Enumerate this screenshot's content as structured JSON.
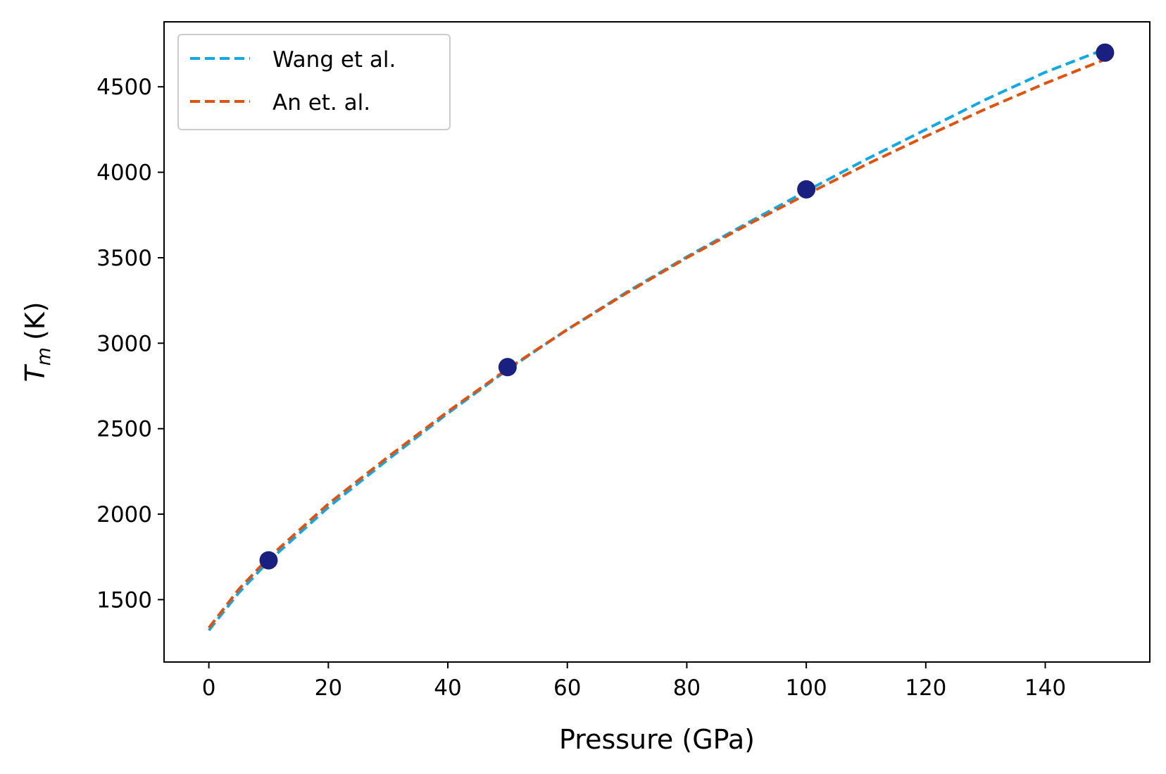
{
  "chart_data": {
    "type": "line",
    "xlabel": "Pressure (GPa)",
    "ylabel": {
      "symbol": "T",
      "subscript": "m",
      "unit": "(K)"
    },
    "xlim": [
      -7.5,
      157.5
    ],
    "ylim": [
      1135,
      4880
    ],
    "xticks": [
      0,
      20,
      40,
      60,
      80,
      100,
      120,
      140
    ],
    "yticks": [
      1500,
      2000,
      2500,
      3000,
      3500,
      4000,
      4500
    ],
    "grid": false,
    "legend_position": "top-left",
    "series": [
      {
        "name": "Wang et al.",
        "style": "dashed",
        "color": "#11a8e6",
        "x": [
          0,
          5,
          10,
          20,
          30,
          40,
          50,
          60,
          70,
          80,
          90,
          100,
          110,
          120,
          130,
          140,
          150
        ],
        "y": [
          1320,
          1540,
          1725,
          2040,
          2320,
          2590,
          2845,
          3080,
          3300,
          3505,
          3700,
          3890,
          4075,
          4250,
          4425,
          4585,
          4720
        ]
      },
      {
        "name": "An et. al.",
        "style": "dashed",
        "color": "#e0530e",
        "x": [
          0,
          5,
          10,
          20,
          30,
          40,
          50,
          60,
          70,
          80,
          90,
          100,
          110,
          120,
          130,
          140,
          150
        ],
        "y": [
          1335,
          1560,
          1745,
          2060,
          2335,
          2600,
          2850,
          3080,
          3295,
          3500,
          3690,
          3870,
          4045,
          4210,
          4370,
          4520,
          4660
        ]
      },
      {
        "name": "",
        "style": "markers",
        "color": "#1a2080",
        "x": [
          10,
          50,
          100,
          150
        ],
        "y": [
          1730,
          2860,
          3900,
          4700
        ]
      }
    ]
  }
}
